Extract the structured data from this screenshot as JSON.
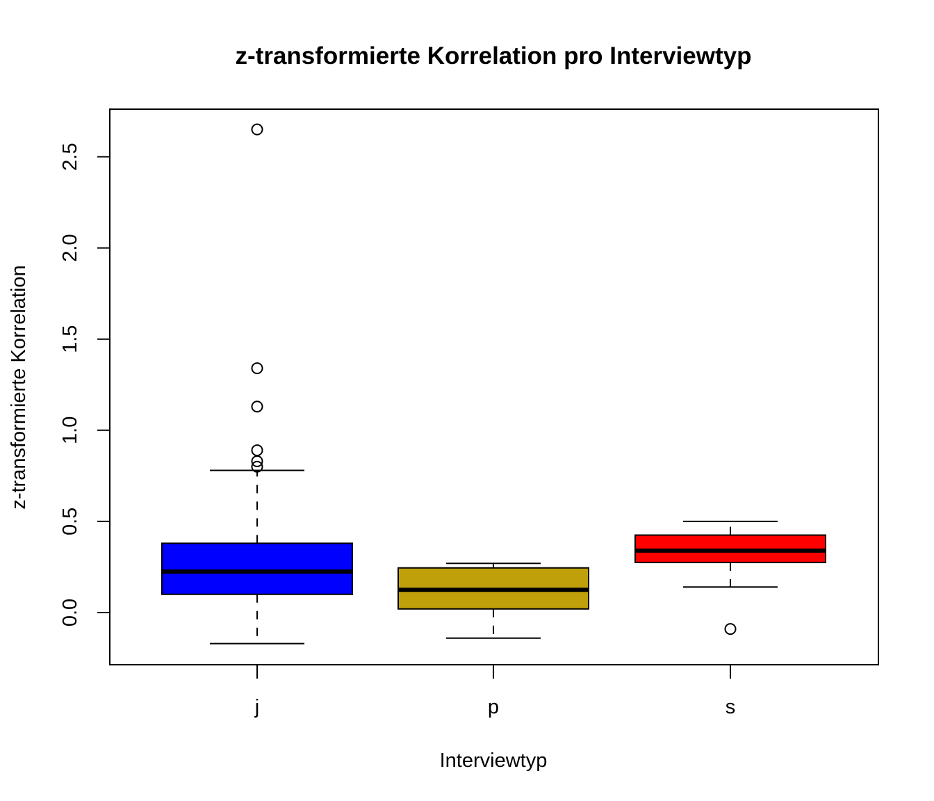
{
  "chart_data": {
    "type": "boxplot",
    "title": "z-transformierte Korrelation pro Interviewtyp",
    "xlabel": "Interviewtyp",
    "ylabel": "z-transformierte Korrelation",
    "ylim": [
      -0.28,
      2.77
    ],
    "yticks": [
      "0.0",
      "0.5",
      "1.0",
      "1.5",
      "2.0",
      "2.5"
    ],
    "grid": false,
    "categories": [
      "j",
      "p",
      "s"
    ],
    "boxes": [
      {
        "category": "j",
        "color": "#0000FF",
        "whisker_low": -0.17,
        "q1": 0.1,
        "median": 0.225,
        "q3": 0.38,
        "whisker_high": 0.78,
        "outliers": [
          0.8,
          0.83,
          0.89,
          1.13,
          1.34,
          2.65
        ]
      },
      {
        "category": "p",
        "color": "#C0A00A",
        "whisker_low": -0.14,
        "q1": 0.02,
        "median": 0.125,
        "q3": 0.245,
        "whisker_high": 0.27,
        "outliers": []
      },
      {
        "category": "s",
        "color": "#FF0000",
        "whisker_low": 0.14,
        "q1": 0.275,
        "median": 0.34,
        "q3": 0.425,
        "whisker_high": 0.5,
        "outliers": [
          -0.09
        ]
      }
    ]
  }
}
